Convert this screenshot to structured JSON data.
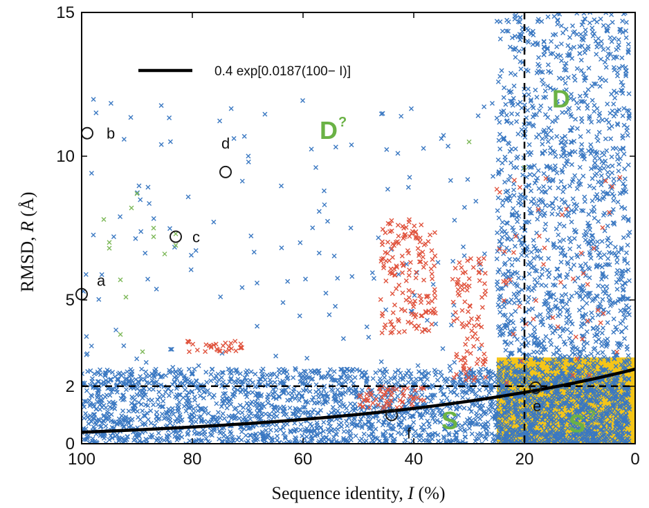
{
  "chart_data": {
    "type": "scatter",
    "xlabel_prefix": "Sequence identity, ",
    "xlabel_var": "I",
    "xlabel_suffix": " (%)",
    "ylabel_prefix": "RMSD, ",
    "ylabel_var": "R",
    "ylabel_suffix": " (Å)",
    "xlim": [
      100,
      0
    ],
    "x_reversed": true,
    "ylim": [
      0,
      15
    ],
    "x_ticks": [
      100,
      80,
      60,
      40,
      20,
      0
    ],
    "y_ticks": [
      0,
      2,
      5,
      10,
      15
    ],
    "legend": {
      "label": "0.4 exp[0.0187(100− I)]",
      "placement": "top-left"
    },
    "fit_curve": {
      "a": 0.4,
      "b": 0.0187
    },
    "thresholds": {
      "x": 20,
      "y": 2
    },
    "shaded_region": {
      "x_from": 25,
      "x_to": 0,
      "y_from": 0,
      "y_to": 3,
      "color": "#f5c518"
    },
    "colors": {
      "blue": "#3a78c2",
      "red": "#e0533d",
      "green": "#7cb857",
      "curve": "#000000",
      "label_green": "#6ab245"
    },
    "series": [
      {
        "color": "blue",
        "description": "dense cloud",
        "clusters": [
          {
            "x": [
              1,
              100
            ],
            "y": [
              0,
              2.6
            ],
            "n": 2200
          },
          {
            "x": [
              1,
              25
            ],
            "y": [
              0,
              15
            ],
            "n": 1800
          },
          {
            "x": [
              1,
              100
            ],
            "y": [
              0,
              12
            ],
            "n": 400
          }
        ]
      },
      {
        "color": "red",
        "clusters": [
          {
            "x": [
              36,
              46
            ],
            "y": [
              3.8,
              7.8
            ],
            "n": 160
          },
          {
            "x": [
              27,
              33
            ],
            "y": [
              2.2,
              6.5
            ],
            "n": 90
          },
          {
            "x": [
              38,
              50
            ],
            "y": [
              1.2,
              2.0
            ],
            "n": 60
          },
          {
            "x": [
              71,
              81
            ],
            "y": [
              3.2,
              3.6
            ],
            "n": 30
          },
          {
            "x": [
              2,
              25
            ],
            "y": [
              2,
              10
            ],
            "n": 50
          }
        ]
      },
      {
        "color": "green",
        "points": [
          [
            96,
            7.8
          ],
          [
            95,
            7.0
          ],
          [
            93,
            5.7
          ],
          [
            91,
            8.2
          ],
          [
            90,
            8.7
          ],
          [
            87,
            7.5
          ],
          [
            87,
            7.2
          ],
          [
            85,
            6.6
          ],
          [
            95,
            6.8
          ],
          [
            92,
            5.1
          ],
          [
            93,
            3.8
          ],
          [
            89,
            3.2
          ],
          [
            83,
            7.3
          ],
          [
            30,
            10.5
          ],
          [
            20,
            9.6
          ],
          [
            83,
            6.9
          ]
        ]
      }
    ],
    "labeled_points": [
      {
        "label": "a",
        "x": 100,
        "y": 5.2
      },
      {
        "label": "b",
        "x": 99,
        "y": 10.8
      },
      {
        "label": "c",
        "x": 83,
        "y": 7.2
      },
      {
        "label": "d",
        "x": 74,
        "y": 9.45
      },
      {
        "label": "e",
        "x": 18,
        "y": 1.95
      },
      {
        "label": "f",
        "x": 44,
        "y": 1.0
      }
    ],
    "region_labels": [
      {
        "text": "D",
        "sup": "?",
        "x": 57,
        "y": 10.6
      },
      {
        "text": "D",
        "sup": "",
        "x": 15,
        "y": 11.7
      },
      {
        "text": "S",
        "sup": "",
        "x": 35,
        "y": 0.5
      },
      {
        "text": "S",
        "sup": "?",
        "x": 12,
        "y": 0.4
      }
    ]
  }
}
